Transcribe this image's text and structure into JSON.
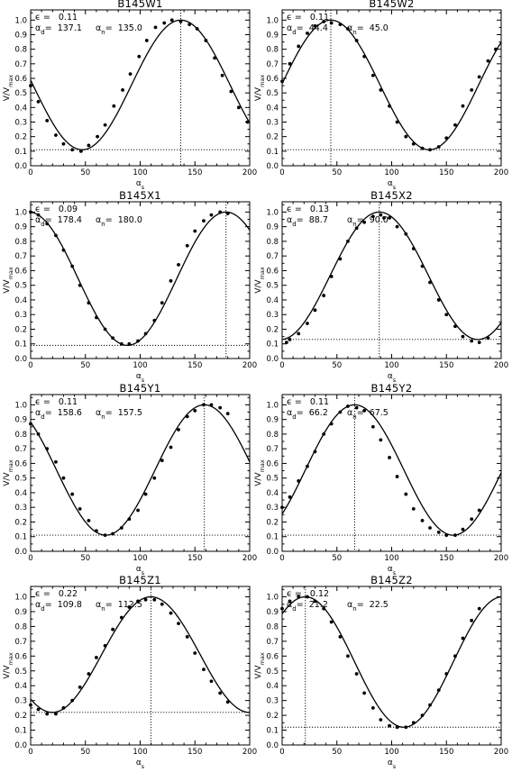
{
  "figure": {
    "background": "#ffffff",
    "ink": "#000000"
  },
  "chart_data": [
    {
      "type": "line",
      "title": "B145W1",
      "xlabel": "α_s",
      "ylabel": "V/V_max",
      "xlim": [
        0,
        200
      ],
      "ylim": [
        0,
        1.07
      ],
      "xticks": [
        0,
        50,
        100,
        150,
        200
      ],
      "yticks": [
        0.0,
        0.1,
        0.2,
        0.3,
        0.4,
        0.5,
        0.6,
        0.7,
        0.8,
        0.9,
        1.0
      ],
      "annotations": {
        "epsilon": "0.11",
        "alpha_d": "137.1",
        "alpha_n": "135.0"
      },
      "fit": {
        "epsilon": 0.11,
        "alpha_d": 137.1
      },
      "reference_lines": {
        "vertical_x": 137.1,
        "horizontal_y": 0.11
      },
      "points": {
        "x": [
          0,
          7,
          15,
          23,
          30,
          38,
          46,
          53,
          61,
          68,
          76,
          84,
          91,
          99,
          106,
          114,
          122,
          129,
          137,
          145,
          152,
          160,
          168,
          175,
          183,
          190,
          198
        ],
        "y": [
          0.55,
          0.44,
          0.31,
          0.21,
          0.15,
          0.11,
          0.1,
          0.14,
          0.2,
          0.28,
          0.41,
          0.52,
          0.63,
          0.75,
          0.86,
          0.95,
          0.98,
          1.0,
          0.99,
          0.97,
          0.94,
          0.86,
          0.74,
          0.62,
          0.51,
          0.4,
          0.3
        ]
      }
    },
    {
      "type": "line",
      "title": "B145W2",
      "xlabel": "α_s",
      "ylabel": "V/V_max",
      "xlim": [
        0,
        200
      ],
      "ylim": [
        0,
        1.07
      ],
      "xticks": [
        0,
        50,
        100,
        150,
        200
      ],
      "yticks": [
        0.0,
        0.1,
        0.2,
        0.3,
        0.4,
        0.5,
        0.6,
        0.7,
        0.8,
        0.9,
        1.0
      ],
      "annotations": {
        "epsilon": "0.11",
        "alpha_d": "44.4",
        "alpha_n": "45.0"
      },
      "fit": {
        "epsilon": 0.11,
        "alpha_d": 44.4
      },
      "reference_lines": {
        "vertical_x": 44.4,
        "horizontal_y": 0.11
      },
      "points": {
        "x": [
          0,
          7,
          15,
          23,
          30,
          38,
          45,
          53,
          60,
          68,
          75,
          83,
          90,
          98,
          105,
          113,
          120,
          128,
          135,
          143,
          150,
          158,
          165,
          173,
          180,
          188,
          195
        ],
        "y": [
          0.58,
          0.7,
          0.82,
          0.91,
          0.96,
          0.99,
          0.98,
          0.97,
          0.94,
          0.86,
          0.75,
          0.62,
          0.52,
          0.41,
          0.3,
          0.2,
          0.15,
          0.12,
          0.11,
          0.13,
          0.19,
          0.28,
          0.41,
          0.52,
          0.61,
          0.72,
          0.8
        ]
      }
    },
    {
      "type": "line",
      "title": "B145X1",
      "xlabel": "α_s",
      "ylabel": "V/V_max",
      "xlim": [
        0,
        200
      ],
      "ylim": [
        0,
        1.07
      ],
      "xticks": [
        0,
        50,
        100,
        150,
        200
      ],
      "yticks": [
        0.0,
        0.1,
        0.2,
        0.3,
        0.4,
        0.5,
        0.6,
        0.7,
        0.8,
        0.9,
        1.0
      ],
      "annotations": {
        "epsilon": "0.09",
        "alpha_d": "178.4",
        "alpha_n": "180.0"
      },
      "fit": {
        "epsilon": 0.09,
        "alpha_d": 178.4
      },
      "reference_lines": {
        "vertical_x": 178.4,
        "horizontal_y": 0.09
      },
      "points": {
        "x": [
          0,
          7,
          15,
          23,
          30,
          38,
          45,
          53,
          60,
          68,
          75,
          83,
          90,
          98,
          105,
          113,
          120,
          128,
          135,
          143,
          150,
          158,
          165,
          173,
          180
        ],
        "y": [
          1.0,
          0.98,
          0.92,
          0.84,
          0.74,
          0.63,
          0.5,
          0.38,
          0.28,
          0.2,
          0.14,
          0.1,
          0.1,
          0.12,
          0.17,
          0.26,
          0.38,
          0.53,
          0.64,
          0.77,
          0.87,
          0.94,
          0.98,
          1.0,
          0.99
        ]
      }
    },
    {
      "type": "line",
      "title": "B145X2",
      "xlabel": "α_s",
      "ylabel": "V/V_max",
      "xlim": [
        0,
        200
      ],
      "ylim": [
        0,
        1.07
      ],
      "xticks": [
        0,
        50,
        100,
        150,
        200
      ],
      "yticks": [
        0.0,
        0.1,
        0.2,
        0.3,
        0.4,
        0.5,
        0.6,
        0.7,
        0.8,
        0.9,
        1.0
      ],
      "annotations": {
        "epsilon": "0.13",
        "alpha_d": "88.7",
        "alpha_n": "90.0"
      },
      "fit": {
        "epsilon": 0.13,
        "alpha_d": 88.7
      },
      "reference_lines": {
        "vertical_x": 88.7,
        "horizontal_y": 0.13
      },
      "points": {
        "x": [
          4,
          7,
          15,
          23,
          30,
          38,
          45,
          53,
          60,
          68,
          75,
          83,
          90,
          93,
          98,
          105,
          113,
          120,
          128,
          135,
          143,
          150,
          158,
          165,
          173,
          180,
          188
        ],
        "y": [
          0.11,
          0.13,
          0.17,
          0.24,
          0.33,
          0.43,
          0.56,
          0.68,
          0.8,
          0.89,
          0.93,
          0.97,
          0.98,
          0.96,
          0.96,
          0.9,
          0.85,
          0.75,
          0.63,
          0.52,
          0.4,
          0.3,
          0.22,
          0.15,
          0.12,
          0.11,
          0.14
        ]
      }
    },
    {
      "type": "line",
      "title": "B145Y1",
      "xlabel": "α_s",
      "ylabel": "V/V_max",
      "xlim": [
        0,
        200
      ],
      "ylim": [
        0,
        1.07
      ],
      "xticks": [
        0,
        50,
        100,
        150,
        200
      ],
      "yticks": [
        0.0,
        0.1,
        0.2,
        0.3,
        0.4,
        0.5,
        0.6,
        0.7,
        0.8,
        0.9,
        1.0
      ],
      "annotations": {
        "epsilon": "0.11",
        "alpha_d": "158.6",
        "alpha_n": "157.5"
      },
      "fit": {
        "epsilon": 0.11,
        "alpha_d": 158.6
      },
      "reference_lines": {
        "vertical_x": 158.6,
        "horizontal_y": 0.11
      },
      "points": {
        "x": [
          0,
          7,
          15,
          23,
          30,
          38,
          45,
          53,
          60,
          68,
          75,
          83,
          90,
          98,
          105,
          113,
          120,
          128,
          135,
          143,
          150,
          158,
          165,
          173,
          180
        ],
        "y": [
          0.87,
          0.8,
          0.7,
          0.61,
          0.5,
          0.39,
          0.29,
          0.21,
          0.14,
          0.11,
          0.12,
          0.16,
          0.22,
          0.28,
          0.39,
          0.5,
          0.62,
          0.71,
          0.83,
          0.92,
          0.96,
          1.0,
          1.0,
          0.98,
          0.94
        ]
      }
    },
    {
      "type": "line",
      "title": "B145Y2",
      "xlabel": "α_s",
      "ylabel": "V/V_max",
      "xlim": [
        0,
        200
      ],
      "ylim": [
        0,
        1.07
      ],
      "xticks": [
        0,
        50,
        100,
        150,
        200
      ],
      "yticks": [
        0.0,
        0.1,
        0.2,
        0.3,
        0.4,
        0.5,
        0.6,
        0.7,
        0.8,
        0.9,
        1.0
      ],
      "annotations": {
        "epsilon": "0.11",
        "alpha_d": "66.2",
        "alpha_n": "67.5"
      },
      "fit": {
        "epsilon": 0.11,
        "alpha_d": 66.2
      },
      "reference_lines": {
        "vertical_x": 66.2,
        "horizontal_y": 0.11
      },
      "points": {
        "x": [
          0,
          7,
          15,
          23,
          30,
          38,
          45,
          53,
          60,
          68,
          75,
          83,
          90,
          98,
          105,
          113,
          120,
          128,
          135,
          143,
          150,
          158,
          165,
          173,
          180
        ],
        "y": [
          0.3,
          0.37,
          0.48,
          0.58,
          0.68,
          0.8,
          0.87,
          0.95,
          0.99,
          0.98,
          0.96,
          0.85,
          0.76,
          0.64,
          0.51,
          0.39,
          0.29,
          0.21,
          0.16,
          0.13,
          0.11,
          0.11,
          0.15,
          0.22,
          0.28
        ]
      }
    },
    {
      "type": "line",
      "title": "B145Z1",
      "xlabel": "α_s",
      "ylabel": "V/V_max",
      "xlim": [
        0,
        200
      ],
      "ylim": [
        0,
        1.07
      ],
      "xticks": [
        0,
        50,
        100,
        150,
        200
      ],
      "yticks": [
        0.0,
        0.1,
        0.2,
        0.3,
        0.4,
        0.5,
        0.6,
        0.7,
        0.8,
        0.9,
        1.0
      ],
      "annotations": {
        "epsilon": "0.22",
        "alpha_d": "109.8",
        "alpha_n": "112.5"
      },
      "fit": {
        "epsilon": 0.22,
        "alpha_d": 109.8
      },
      "reference_lines": {
        "vertical_x": 109.8,
        "horizontal_y": 0.22
      },
      "points": {
        "x": [
          0,
          7,
          15,
          23,
          30,
          38,
          45,
          53,
          60,
          68,
          75,
          83,
          90,
          98,
          105,
          113,
          120,
          128,
          135,
          143,
          150,
          158,
          165,
          173,
          180
        ],
        "y": [
          0.27,
          0.24,
          0.21,
          0.21,
          0.25,
          0.3,
          0.39,
          0.48,
          0.59,
          0.67,
          0.78,
          0.86,
          0.93,
          0.97,
          0.98,
          0.98,
          0.95,
          0.89,
          0.82,
          0.73,
          0.62,
          0.51,
          0.43,
          0.35,
          0.29
        ]
      }
    },
    {
      "type": "line",
      "title": "B145Z2",
      "xlabel": "α_s",
      "ylabel": "V/V_max",
      "xlim": [
        0,
        200
      ],
      "ylim": [
        0,
        1.07
      ],
      "xticks": [
        0,
        50,
        100,
        150,
        200
      ],
      "yticks": [
        0.0,
        0.1,
        0.2,
        0.3,
        0.4,
        0.5,
        0.6,
        0.7,
        0.8,
        0.9,
        1.0
      ],
      "annotations": {
        "epsilon": "0.12",
        "alpha_d": "21.2",
        "alpha_n": "22.5"
      },
      "fit": {
        "epsilon": 0.12,
        "alpha_d": 21.2
      },
      "reference_lines": {
        "vertical_x": 21.2,
        "horizontal_y": 0.12
      },
      "points": {
        "x": [
          0,
          7,
          15,
          23,
          30,
          38,
          45,
          53,
          60,
          68,
          75,
          83,
          90,
          98,
          105,
          113,
          120,
          128,
          135,
          143,
          150,
          158,
          165,
          173,
          180
        ],
        "y": [
          0.92,
          0.97,
          1.0,
          1.0,
          0.97,
          0.92,
          0.83,
          0.73,
          0.6,
          0.48,
          0.35,
          0.25,
          0.17,
          0.13,
          0.12,
          0.12,
          0.15,
          0.2,
          0.27,
          0.37,
          0.48,
          0.6,
          0.72,
          0.84,
          0.92
        ]
      }
    }
  ]
}
